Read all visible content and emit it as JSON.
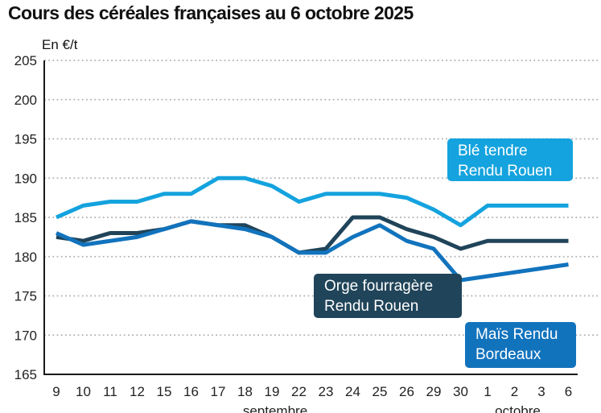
{
  "title": "Cours des céréales françaises au 6 octobre 2025",
  "unit_label": "En €/t",
  "chart_data": {
    "type": "line",
    "title": "Cours des céréales françaises au 6 octobre 2025",
    "ylabel": "En €/t",
    "xlabel": "",
    "ylim": [
      165,
      205
    ],
    "ytick_step": 5,
    "grid": "horizontal-dotted",
    "legend_position": "on-chart-boxes",
    "categories": [
      "9",
      "10",
      "11",
      "12",
      "15",
      "16",
      "17",
      "18",
      "19",
      "22",
      "23",
      "24",
      "25",
      "26",
      "29",
      "30",
      "1",
      "2",
      "3",
      "6"
    ],
    "month_labels": [
      {
        "label": "septembre",
        "center_category_index": 8
      },
      {
        "label": "octobre",
        "center_category_index": 17
      }
    ],
    "series": [
      {
        "name": "Blé tendre Rendu Rouen",
        "color": "#14a3de",
        "values": [
          185,
          186.5,
          187,
          187,
          188,
          188,
          190,
          190,
          189,
          187,
          188,
          188,
          188,
          187.5,
          186,
          184,
          186.5,
          186.5,
          186.5,
          186.5
        ]
      },
      {
        "name": "Orge fourragère Rendu Rouen",
        "color": "#204459",
        "values": [
          182.5,
          182,
          183,
          183,
          183.5,
          184.5,
          184,
          184,
          182.5,
          180.5,
          181,
          185,
          185,
          183.5,
          182.5,
          181,
          182,
          182,
          182,
          182
        ]
      },
      {
        "name": "Maïs Rendu Bordeaux",
        "color": "#1273bd",
        "values": [
          183,
          181.5,
          182,
          182.5,
          183.5,
          184.5,
          184,
          183.5,
          182.5,
          180.5,
          180.5,
          182.5,
          184,
          182,
          181,
          177,
          177.5,
          178,
          178.5,
          179
        ]
      }
    ],
    "labels": [
      {
        "line1": "Blé tendre",
        "line2": "Rendu Rouen"
      },
      {
        "line1": "Orge fourragère",
        "line2": "Rendu Rouen"
      },
      {
        "line1": "Maïs Rendu",
        "line2": "Bordeaux"
      }
    ],
    "axis_color": "#1a1a1a",
    "gridline_color": "#b0b0b0",
    "tick_label_color": "#222222"
  }
}
